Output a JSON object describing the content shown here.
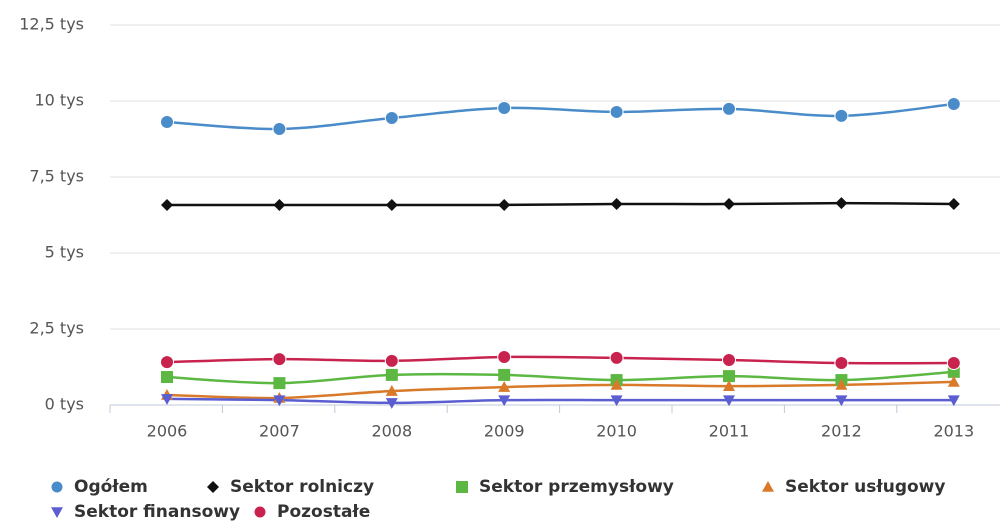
{
  "chart_data": {
    "type": "line",
    "categories": [
      "2006",
      "2007",
      "2008",
      "2009",
      "2010",
      "2011",
      "2012",
      "2013"
    ],
    "ylim": [
      0,
      12.5
    ],
    "yticks": [
      {
        "value": 0,
        "label": "0 tys"
      },
      {
        "value": 2.5,
        "label": "2,5 tys"
      },
      {
        "value": 5,
        "label": "5 tys"
      },
      {
        "value": 7.5,
        "label": "7,5 tys"
      },
      {
        "value": 10,
        "label": "10 tys"
      },
      {
        "value": 12.5,
        "label": "12,5 tys"
      }
    ],
    "grid": true,
    "legend": "bottom",
    "series": [
      {
        "name": "Ogółem",
        "color": "#4a8bc9",
        "marker": "circle",
        "values": [
          9.31,
          9.08,
          9.44,
          9.77,
          9.64,
          9.74,
          9.51,
          9.9
        ]
      },
      {
        "name": "Sektor rolniczy",
        "color": "#111111",
        "marker": "diamond",
        "values": [
          6.58,
          6.58,
          6.58,
          6.58,
          6.61,
          6.61,
          6.64,
          6.61
        ]
      },
      {
        "name": "Sektor przemysłowy",
        "color": "#5cb843",
        "marker": "square",
        "values": [
          0.92,
          0.72,
          0.99,
          0.99,
          0.82,
          0.95,
          0.82,
          1.09
        ]
      },
      {
        "name": "Sektor usługowy",
        "color": "#d97a2a",
        "marker": "triangle",
        "values": [
          0.33,
          0.23,
          0.46,
          0.59,
          0.66,
          0.62,
          0.66,
          0.76
        ]
      },
      {
        "name": "Sektor finansowy",
        "color": "#5a5ed0",
        "marker": "triangle-down",
        "values": [
          0.2,
          0.16,
          0.07,
          0.16,
          0.16,
          0.16,
          0.16,
          0.16
        ]
      },
      {
        "name": "Pozostałe",
        "color": "#c8234e",
        "marker": "circle",
        "values": [
          1.41,
          1.51,
          1.45,
          1.58,
          1.55,
          1.48,
          1.38,
          1.38
        ]
      }
    ]
  }
}
